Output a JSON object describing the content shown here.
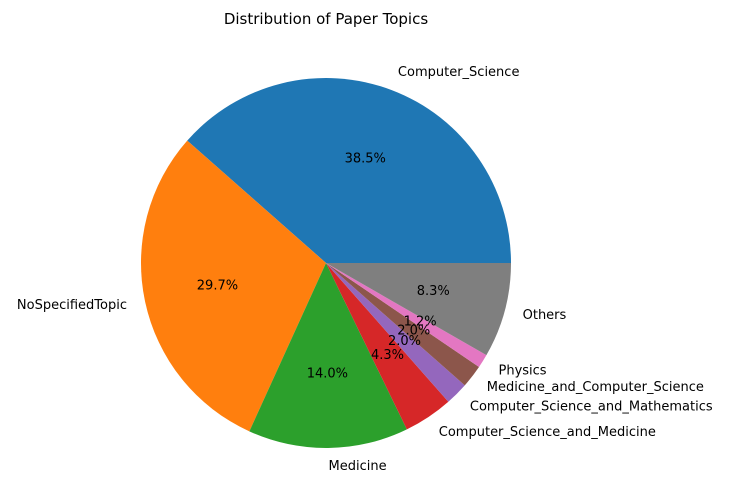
{
  "chart_data": {
    "type": "pie",
    "title": "Distribution of Paper Topics",
    "start_angle_deg": 0,
    "direction": "counterclockwise",
    "slices": [
      {
        "label": "Computer_Science",
        "value": 38.5,
        "pct_label": "38.5%",
        "color": "#1f77b4"
      },
      {
        "label": "NoSpecifiedTopic",
        "value": 29.7,
        "pct_label": "29.7%",
        "color": "#ff7f0e"
      },
      {
        "label": "Medicine",
        "value": 14.0,
        "pct_label": "14.0%",
        "color": "#2ca02c"
      },
      {
        "label": "Computer_Science_and_Medicine",
        "value": 4.3,
        "pct_label": "4.3%",
        "color": "#d62728"
      },
      {
        "label": "Computer_Science_and_Mathematics",
        "value": 2.0,
        "pct_label": "2.0%",
        "color": "#9467bd"
      },
      {
        "label": "Medicine_and_Computer_Science",
        "value": 2.0,
        "pct_label": "2.0%",
        "color": "#8c564b"
      },
      {
        "label": "Physics",
        "value": 1.2,
        "pct_label": "1.2%",
        "color": "#e377c2"
      },
      {
        "label": "Others",
        "value": 8.3,
        "pct_label": "8.3%",
        "color": "#7f7f7f"
      }
    ]
  }
}
